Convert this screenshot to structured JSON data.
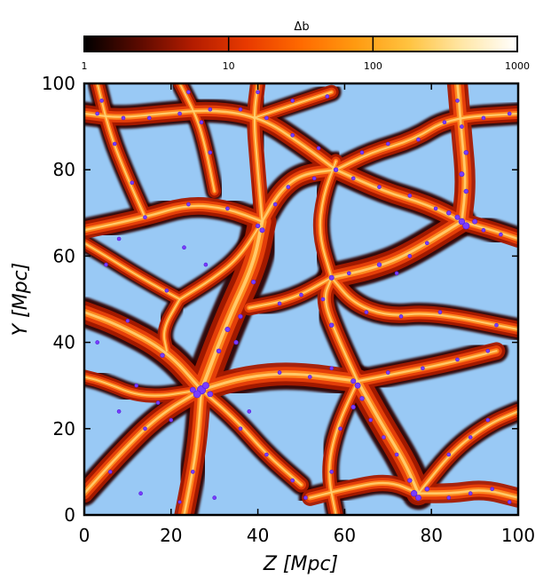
{
  "chart_data": {
    "type": "heatmap",
    "title": "",
    "xlabel": "Z [Mpc]",
    "ylabel": "Y [Mpc]",
    "xlim": [
      0,
      100
    ],
    "ylim": [
      0,
      100
    ],
    "xticks": [
      "0",
      "20",
      "40",
      "60",
      "80",
      "100"
    ],
    "yticks": [
      "0",
      "20",
      "40",
      "60",
      "80",
      "100"
    ],
    "colorbar": {
      "label": "Δb",
      "scale": "log",
      "range": [
        1,
        1000
      ],
      "ticks": [
        "1",
        "10",
        "100",
        "1000"
      ],
      "colormap": [
        "#000000",
        "#5a0a00",
        "#b31c00",
        "#e83a00",
        "#ff6a00",
        "#ff9a10",
        "#ffc340",
        "#ffe7a8",
        "#ffffff"
      ]
    },
    "background_color": "#99c9f5",
    "halo_color": "#7a3cff",
    "filaments": [
      {
        "points": [
          [
            27,
            29
          ],
          [
            19,
            38
          ],
          [
            8,
            44
          ],
          [
            0,
            47
          ]
        ],
        "strength": 70
      },
      {
        "points": [
          [
            27,
            29
          ],
          [
            33,
            45
          ],
          [
            39,
            58
          ],
          [
            41,
            68
          ]
        ],
        "strength": 100
      },
      {
        "points": [
          [
            27,
            29
          ],
          [
            17,
            23
          ],
          [
            8,
            14
          ],
          [
            0,
            5
          ]
        ],
        "strength": 55
      },
      {
        "points": [
          [
            27,
            29
          ],
          [
            26,
            16
          ],
          [
            24,
            5
          ],
          [
            23,
            0
          ]
        ],
        "strength": 60
      },
      {
        "points": [
          [
            27,
            29
          ],
          [
            37,
            32
          ],
          [
            48,
            33
          ],
          [
            63,
            31
          ]
        ],
        "strength": 75
      },
      {
        "points": [
          [
            27,
            29
          ],
          [
            35,
            22
          ],
          [
            42,
            14
          ],
          [
            50,
            7
          ]
        ],
        "strength": 40
      },
      {
        "points": [
          [
            27,
            29
          ],
          [
            14,
            27
          ],
          [
            4,
            31
          ],
          [
            0,
            32
          ]
        ],
        "strength": 35
      },
      {
        "points": [
          [
            63,
            31
          ],
          [
            68,
            22
          ],
          [
            74,
            12
          ],
          [
            77,
            5
          ]
        ],
        "strength": 80
      },
      {
        "points": [
          [
            63,
            31
          ],
          [
            58,
            42
          ],
          [
            55,
            50
          ],
          [
            57,
            55
          ]
        ],
        "strength": 45
      },
      {
        "points": [
          [
            63,
            31
          ],
          [
            73,
            33
          ],
          [
            83,
            35
          ],
          [
            95,
            38
          ]
        ],
        "strength": 50
      },
      {
        "points": [
          [
            63,
            31
          ],
          [
            58,
            20
          ],
          [
            56,
            10
          ],
          [
            58,
            0
          ]
        ],
        "strength": 35
      },
      {
        "points": [
          [
            77,
            5
          ],
          [
            85,
            5
          ],
          [
            92,
            6
          ],
          [
            100,
            4
          ]
        ],
        "strength": 60
      },
      {
        "points": [
          [
            77,
            5
          ],
          [
            70,
            8
          ],
          [
            60,
            6
          ],
          [
            52,
            4
          ]
        ],
        "strength": 45
      },
      {
        "points": [
          [
            77,
            5
          ],
          [
            85,
            15
          ],
          [
            93,
            21
          ],
          [
            100,
            24
          ]
        ],
        "strength": 40
      },
      {
        "points": [
          [
            57,
            55
          ],
          [
            66,
            57
          ],
          [
            74,
            60
          ],
          [
            87,
            68
          ]
        ],
        "strength": 70
      },
      {
        "points": [
          [
            57,
            55
          ],
          [
            48,
            50
          ],
          [
            38,
            48
          ]
        ],
        "strength": 40
      },
      {
        "points": [
          [
            57,
            55
          ],
          [
            62,
            49
          ],
          [
            70,
            46
          ],
          [
            80,
            47
          ],
          [
            100,
            43
          ]
        ],
        "strength": 45
      },
      {
        "points": [
          [
            57,
            55
          ],
          [
            54,
            65
          ],
          [
            55,
            74
          ],
          [
            58,
            82
          ]
        ],
        "strength": 35
      },
      {
        "points": [
          [
            87,
            68
          ],
          [
            88,
            77
          ],
          [
            87,
            88
          ],
          [
            86,
            100
          ]
        ],
        "strength": 65
      },
      {
        "points": [
          [
            87,
            68
          ],
          [
            94,
            66
          ],
          [
            100,
            64
          ]
        ],
        "strength": 50
      },
      {
        "points": [
          [
            87,
            68
          ],
          [
            79,
            72
          ],
          [
            69,
            75
          ],
          [
            58,
            80
          ]
        ],
        "strength": 55
      },
      {
        "points": [
          [
            41,
            68
          ],
          [
            45,
            75
          ],
          [
            50,
            79
          ],
          [
            58,
            80
          ]
        ],
        "strength": 55
      },
      {
        "points": [
          [
            41,
            68
          ],
          [
            33,
            71
          ],
          [
            24,
            72
          ],
          [
            14,
            69
          ],
          [
            0,
            66
          ]
        ],
        "strength": 50
      },
      {
        "points": [
          [
            41,
            68
          ],
          [
            40,
            80
          ],
          [
            39,
            92
          ],
          [
            40,
            100
          ]
        ],
        "strength": 40
      },
      {
        "points": [
          [
            41,
            68
          ],
          [
            36,
            60
          ],
          [
            30,
            55
          ],
          [
            22,
            50
          ]
        ],
        "strength": 35
      },
      {
        "points": [
          [
            58,
            80
          ],
          [
            66,
            84
          ],
          [
            76,
            87
          ],
          [
            84,
            92
          ],
          [
            100,
            93
          ]
        ],
        "strength": 45
      },
      {
        "points": [
          [
            58,
            80
          ],
          [
            50,
            86
          ],
          [
            41,
            92
          ],
          [
            30,
            94
          ],
          [
            18,
            93
          ],
          [
            8,
            92
          ],
          [
            0,
            93
          ]
        ],
        "strength": 50
      },
      {
        "points": [
          [
            39,
            92
          ],
          [
            48,
            95
          ],
          [
            57,
            98
          ]
        ],
        "strength": 35
      },
      {
        "points": [
          [
            14,
            69
          ],
          [
            10,
            78
          ],
          [
            6,
            88
          ],
          [
            3,
            100
          ]
        ],
        "strength": 35
      },
      {
        "points": [
          [
            22,
            50
          ],
          [
            13,
            55
          ],
          [
            5,
            60
          ],
          [
            0,
            63
          ]
        ],
        "strength": 30
      },
      {
        "points": [
          [
            22,
            50
          ],
          [
            18,
            43
          ],
          [
            19,
            38
          ]
        ],
        "strength": 30
      },
      {
        "points": [
          [
            30,
            75
          ],
          [
            28,
            85
          ],
          [
            26,
            92
          ],
          [
            22,
            100
          ]
        ],
        "strength": 30
      }
    ],
    "halos": [
      {
        "x": 27,
        "y": 29,
        "r": 1.4
      },
      {
        "x": 26,
        "y": 28,
        "r": 1.2
      },
      {
        "x": 28,
        "y": 30,
        "r": 1.1
      },
      {
        "x": 25,
        "y": 29,
        "r": 0.9
      },
      {
        "x": 29,
        "y": 28,
        "r": 0.9
      },
      {
        "x": 33,
        "y": 43,
        "r": 0.8
      },
      {
        "x": 35,
        "y": 40,
        "r": 0.7
      },
      {
        "x": 31,
        "y": 38,
        "r": 0.7
      },
      {
        "x": 36,
        "y": 46,
        "r": 0.7
      },
      {
        "x": 39,
        "y": 54,
        "r": 0.7
      },
      {
        "x": 41,
        "y": 66,
        "r": 0.8
      },
      {
        "x": 40,
        "y": 67,
        "r": 0.7
      },
      {
        "x": 23,
        "y": 62,
        "r": 0.6
      },
      {
        "x": 28,
        "y": 58,
        "r": 0.6
      },
      {
        "x": 14,
        "y": 69,
        "r": 0.6
      },
      {
        "x": 8,
        "y": 64,
        "r": 0.6
      },
      {
        "x": 5,
        "y": 58,
        "r": 0.6
      },
      {
        "x": 3,
        "y": 40,
        "r": 0.6
      },
      {
        "x": 10,
        "y": 45,
        "r": 0.6
      },
      {
        "x": 18,
        "y": 37,
        "r": 0.7
      },
      {
        "x": 12,
        "y": 30,
        "r": 0.6
      },
      {
        "x": 8,
        "y": 24,
        "r": 0.6
      },
      {
        "x": 14,
        "y": 20,
        "r": 0.6
      },
      {
        "x": 20,
        "y": 22,
        "r": 0.6
      },
      {
        "x": 25,
        "y": 10,
        "r": 0.6
      },
      {
        "x": 30,
        "y": 4,
        "r": 0.6
      },
      {
        "x": 22,
        "y": 3,
        "r": 0.5
      },
      {
        "x": 13,
        "y": 5,
        "r": 0.6
      },
      {
        "x": 6,
        "y": 10,
        "r": 0.6
      },
      {
        "x": 36,
        "y": 20,
        "r": 0.6
      },
      {
        "x": 42,
        "y": 14,
        "r": 0.6
      },
      {
        "x": 48,
        "y": 8,
        "r": 0.6
      },
      {
        "x": 45,
        "y": 33,
        "r": 0.6
      },
      {
        "x": 52,
        "y": 32,
        "r": 0.6
      },
      {
        "x": 57,
        "y": 34,
        "r": 0.6
      },
      {
        "x": 62,
        "y": 31,
        "r": 0.8
      },
      {
        "x": 63,
        "y": 30,
        "r": 0.9
      },
      {
        "x": 64,
        "y": 27,
        "r": 0.7
      },
      {
        "x": 62,
        "y": 25,
        "r": 0.7
      },
      {
        "x": 66,
        "y": 22,
        "r": 0.6
      },
      {
        "x": 69,
        "y": 18,
        "r": 0.6
      },
      {
        "x": 72,
        "y": 14,
        "r": 0.6
      },
      {
        "x": 75,
        "y": 8,
        "r": 0.7
      },
      {
        "x": 76,
        "y": 5,
        "r": 1.0
      },
      {
        "x": 77,
        "y": 4,
        "r": 0.9
      },
      {
        "x": 79,
        "y": 6,
        "r": 0.7
      },
      {
        "x": 84,
        "y": 4,
        "r": 0.6
      },
      {
        "x": 89,
        "y": 5,
        "r": 0.6
      },
      {
        "x": 94,
        "y": 6,
        "r": 0.6
      },
      {
        "x": 98,
        "y": 3,
        "r": 0.6
      },
      {
        "x": 89,
        "y": 18,
        "r": 0.6
      },
      {
        "x": 84,
        "y": 14,
        "r": 0.6
      },
      {
        "x": 93,
        "y": 22,
        "r": 0.6
      },
      {
        "x": 59,
        "y": 20,
        "r": 0.6
      },
      {
        "x": 57,
        "y": 10,
        "r": 0.6
      },
      {
        "x": 51,
        "y": 4,
        "r": 0.6
      },
      {
        "x": 70,
        "y": 33,
        "r": 0.6
      },
      {
        "x": 78,
        "y": 34,
        "r": 0.6
      },
      {
        "x": 86,
        "y": 36,
        "r": 0.6
      },
      {
        "x": 93,
        "y": 38,
        "r": 0.6
      },
      {
        "x": 57,
        "y": 44,
        "r": 0.7
      },
      {
        "x": 55,
        "y": 50,
        "r": 0.6
      },
      {
        "x": 57,
        "y": 55,
        "r": 0.8
      },
      {
        "x": 61,
        "y": 56,
        "r": 0.6
      },
      {
        "x": 68,
        "y": 58,
        "r": 0.7
      },
      {
        "x": 72,
        "y": 56,
        "r": 0.6
      },
      {
        "x": 75,
        "y": 60,
        "r": 0.6
      },
      {
        "x": 79,
        "y": 63,
        "r": 0.6
      },
      {
        "x": 65,
        "y": 47,
        "r": 0.6
      },
      {
        "x": 73,
        "y": 46,
        "r": 0.6
      },
      {
        "x": 82,
        "y": 47,
        "r": 0.6
      },
      {
        "x": 95,
        "y": 44,
        "r": 0.6
      },
      {
        "x": 87,
        "y": 68,
        "r": 1.0
      },
      {
        "x": 88,
        "y": 67,
        "r": 1.1
      },
      {
        "x": 86,
        "y": 69,
        "r": 0.8
      },
      {
        "x": 90,
        "y": 68,
        "r": 0.8
      },
      {
        "x": 84,
        "y": 70,
        "r": 0.7
      },
      {
        "x": 92,
        "y": 66,
        "r": 0.6
      },
      {
        "x": 96,
        "y": 65,
        "r": 0.6
      },
      {
        "x": 88,
        "y": 75,
        "r": 0.7
      },
      {
        "x": 87,
        "y": 79,
        "r": 0.8
      },
      {
        "x": 88,
        "y": 84,
        "r": 0.7
      },
      {
        "x": 87,
        "y": 90,
        "r": 0.6
      },
      {
        "x": 86,
        "y": 96,
        "r": 0.6
      },
      {
        "x": 81,
        "y": 71,
        "r": 0.6
      },
      {
        "x": 75,
        "y": 74,
        "r": 0.6
      },
      {
        "x": 68,
        "y": 76,
        "r": 0.6
      },
      {
        "x": 62,
        "y": 78,
        "r": 0.6
      },
      {
        "x": 58,
        "y": 80,
        "r": 0.7
      },
      {
        "x": 53,
        "y": 78,
        "r": 0.6
      },
      {
        "x": 47,
        "y": 76,
        "r": 0.6
      },
      {
        "x": 44,
        "y": 72,
        "r": 0.6
      },
      {
        "x": 64,
        "y": 84,
        "r": 0.6
      },
      {
        "x": 70,
        "y": 86,
        "r": 0.6
      },
      {
        "x": 77,
        "y": 87,
        "r": 0.6
      },
      {
        "x": 83,
        "y": 91,
        "r": 0.6
      },
      {
        "x": 92,
        "y": 92,
        "r": 0.6
      },
      {
        "x": 98,
        "y": 93,
        "r": 0.6
      },
      {
        "x": 54,
        "y": 85,
        "r": 0.6
      },
      {
        "x": 48,
        "y": 88,
        "r": 0.6
      },
      {
        "x": 42,
        "y": 92,
        "r": 0.6
      },
      {
        "x": 36,
        "y": 94,
        "r": 0.6
      },
      {
        "x": 29,
        "y": 94,
        "r": 0.6
      },
      {
        "x": 22,
        "y": 93,
        "r": 0.6
      },
      {
        "x": 15,
        "y": 92,
        "r": 0.6
      },
      {
        "x": 9,
        "y": 92,
        "r": 0.6
      },
      {
        "x": 3,
        "y": 93,
        "r": 0.6
      },
      {
        "x": 40,
        "y": 98,
        "r": 0.6
      },
      {
        "x": 48,
        "y": 96,
        "r": 0.6
      },
      {
        "x": 56,
        "y": 97,
        "r": 0.6
      },
      {
        "x": 11,
        "y": 77,
        "r": 0.6
      },
      {
        "x": 7,
        "y": 86,
        "r": 0.6
      },
      {
        "x": 4,
        "y": 96,
        "r": 0.6
      },
      {
        "x": 29,
        "y": 84,
        "r": 0.6
      },
      {
        "x": 27,
        "y": 91,
        "r": 0.6
      },
      {
        "x": 24,
        "y": 98,
        "r": 0.6
      },
      {
        "x": 33,
        "y": 71,
        "r": 0.6
      },
      {
        "x": 24,
        "y": 72,
        "r": 0.6
      },
      {
        "x": 19,
        "y": 52,
        "r": 0.6
      },
      {
        "x": 45,
        "y": 49,
        "r": 0.6
      },
      {
        "x": 50,
        "y": 51,
        "r": 0.6
      },
      {
        "x": 38,
        "y": 24,
        "r": 0.6
      },
      {
        "x": 17,
        "y": 26,
        "r": 0.6
      }
    ]
  }
}
